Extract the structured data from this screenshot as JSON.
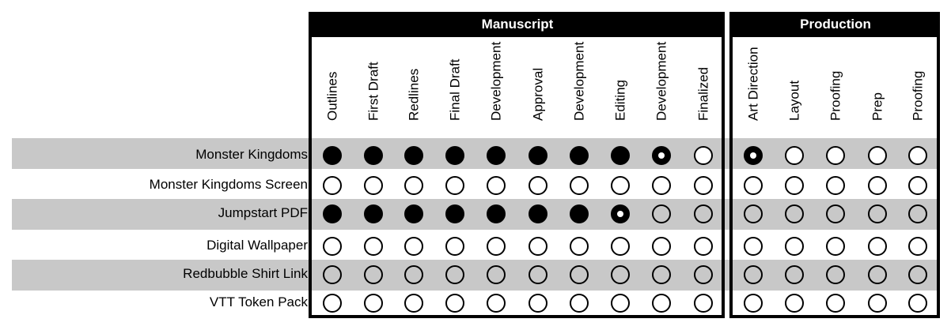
{
  "groups": [
    {
      "title": "Manuscript"
    },
    {
      "title": "Production"
    }
  ],
  "columns": [
    "Outlines",
    "First Draft",
    "Redlines",
    "Final Draft",
    "Development",
    "Approval",
    "Development",
    "Editing",
    "Development",
    "Finalized",
    "Art Direction",
    "Layout",
    "Proofing",
    "Prep",
    "Proofing"
  ],
  "rows": [
    {
      "label": "Monster Kingdoms",
      "status": [
        "done",
        "done",
        "done",
        "done",
        "done",
        "done",
        "done",
        "done",
        "in-progress",
        "not-started",
        "in-progress",
        "not-started",
        "not-started",
        "not-started",
        "not-started"
      ]
    },
    {
      "label": "Monster Kingdoms Screen",
      "status": [
        "not-started",
        "not-started",
        "not-started",
        "not-started",
        "not-started",
        "not-started",
        "not-started",
        "not-started",
        "not-started",
        "not-started",
        "not-started",
        "not-started",
        "not-started",
        "not-started",
        "not-started"
      ]
    },
    {
      "label": "Jumpstart PDF",
      "status": [
        "done",
        "done",
        "done",
        "done",
        "done",
        "done",
        "done",
        "in-progress",
        "not-started",
        "not-started",
        "not-started",
        "not-started",
        "not-started",
        "not-started",
        "not-started"
      ]
    },
    {
      "label": "Digital Wallpaper",
      "status": [
        "not-started",
        "not-started",
        "not-started",
        "not-started",
        "not-started",
        "not-started",
        "not-started",
        "not-started",
        "not-started",
        "not-started",
        "not-started",
        "not-started",
        "not-started",
        "not-started",
        "not-started"
      ]
    },
    {
      "label": "Redbubble Shirt Link",
      "status": [
        "not-started",
        "not-started",
        "not-started",
        "not-started",
        "not-started",
        "not-started",
        "not-started",
        "not-started",
        "not-started",
        "not-started",
        "not-started",
        "not-started",
        "not-started",
        "not-started",
        "not-started"
      ]
    },
    {
      "label": "VTT Token Pack",
      "status": [
        "not-started",
        "not-started",
        "not-started",
        "not-started",
        "not-started",
        "not-started",
        "not-started",
        "not-started",
        "not-started",
        "not-started",
        "not-started",
        "not-started",
        "not-started",
        "not-started",
        "not-started"
      ]
    }
  ],
  "colors": {
    "header_bg": "#000000",
    "band": "#c8c8c8",
    "done": "#000000",
    "empty": "#ffffff"
  }
}
